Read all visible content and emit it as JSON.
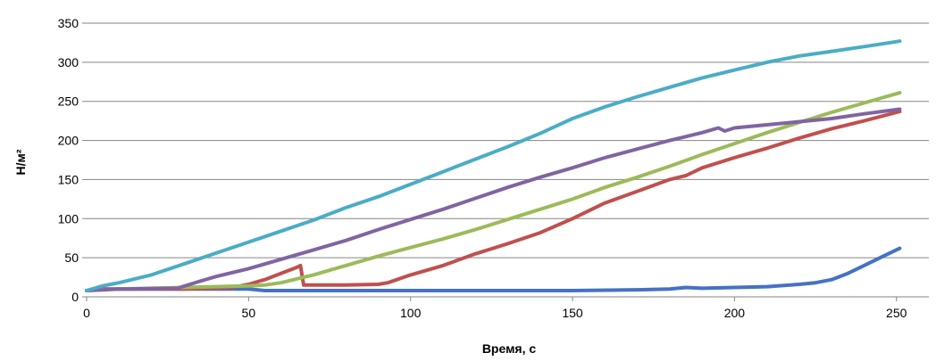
{
  "chart_data": {
    "type": "line",
    "title": "",
    "xlabel": "Время, с",
    "ylabel": "Н/м²",
    "xlim": [
      0,
      260
    ],
    "ylim": [
      0,
      350
    ],
    "xticks": [
      0,
      50,
      100,
      150,
      200,
      250
    ],
    "yticks": [
      0,
      50,
      100,
      150,
      200,
      250,
      300,
      350
    ],
    "grid": "horizontal",
    "legend": "none",
    "series": [
      {
        "color": "#4472C4",
        "points": [
          [
            0,
            8
          ],
          [
            5,
            10
          ],
          [
            50,
            10
          ],
          [
            55,
            8
          ],
          [
            100,
            8
          ],
          [
            150,
            8
          ],
          [
            170,
            9
          ],
          [
            180,
            10
          ],
          [
            185,
            12
          ],
          [
            190,
            11
          ],
          [
            200,
            12
          ],
          [
            210,
            13
          ],
          [
            220,
            16
          ],
          [
            225,
            18
          ],
          [
            230,
            22
          ],
          [
            235,
            30
          ],
          [
            240,
            40
          ],
          [
            245,
            50
          ],
          [
            251,
            62
          ]
        ]
      },
      {
        "color": "#C0504D",
        "points": [
          [
            0,
            8
          ],
          [
            5,
            10
          ],
          [
            30,
            10
          ],
          [
            45,
            12
          ],
          [
            50,
            16
          ],
          [
            55,
            22
          ],
          [
            60,
            30
          ],
          [
            65,
            38
          ],
          [
            66,
            40
          ],
          [
            67,
            15
          ],
          [
            70,
            15
          ],
          [
            80,
            15
          ],
          [
            90,
            16
          ],
          [
            93,
            18
          ],
          [
            100,
            28
          ],
          [
            110,
            40
          ],
          [
            120,
            55
          ],
          [
            130,
            68
          ],
          [
            140,
            82
          ],
          [
            150,
            100
          ],
          [
            160,
            120
          ],
          [
            170,
            135
          ],
          [
            180,
            150
          ],
          [
            185,
            155
          ],
          [
            190,
            165
          ],
          [
            200,
            178
          ],
          [
            210,
            190
          ],
          [
            220,
            203
          ],
          [
            230,
            215
          ],
          [
            240,
            225
          ],
          [
            251,
            237
          ]
        ]
      },
      {
        "color": "#9BBB59",
        "points": [
          [
            0,
            8
          ],
          [
            10,
            10
          ],
          [
            30,
            12
          ],
          [
            50,
            14
          ],
          [
            55,
            15
          ],
          [
            60,
            18
          ],
          [
            70,
            28
          ],
          [
            80,
            40
          ],
          [
            90,
            52
          ],
          [
            100,
            63
          ],
          [
            110,
            74
          ],
          [
            120,
            86
          ],
          [
            130,
            99
          ],
          [
            140,
            112
          ],
          [
            150,
            125
          ],
          [
            160,
            140
          ],
          [
            170,
            153
          ],
          [
            180,
            167
          ],
          [
            190,
            182
          ],
          [
            200,
            196
          ],
          [
            210,
            210
          ],
          [
            220,
            223
          ],
          [
            230,
            236
          ],
          [
            240,
            248
          ],
          [
            251,
            261
          ]
        ]
      },
      {
        "color": "#8064A2",
        "points": [
          [
            0,
            8
          ],
          [
            10,
            10
          ],
          [
            28,
            11
          ],
          [
            35,
            20
          ],
          [
            40,
            26
          ],
          [
            50,
            36
          ],
          [
            60,
            48
          ],
          [
            70,
            60
          ],
          [
            80,
            72
          ],
          [
            90,
            86
          ],
          [
            100,
            99
          ],
          [
            110,
            112
          ],
          [
            120,
            126
          ],
          [
            130,
            140
          ],
          [
            140,
            153
          ],
          [
            150,
            165
          ],
          [
            160,
            178
          ],
          [
            170,
            189
          ],
          [
            180,
            200
          ],
          [
            190,
            210
          ],
          [
            195,
            216
          ],
          [
            197,
            212
          ],
          [
            200,
            216
          ],
          [
            210,
            220
          ],
          [
            220,
            224
          ],
          [
            230,
            228
          ],
          [
            240,
            234
          ],
          [
            251,
            240
          ]
        ]
      },
      {
        "color": "#4BACC6",
        "points": [
          [
            0,
            8
          ],
          [
            5,
            14
          ],
          [
            10,
            18
          ],
          [
            20,
            28
          ],
          [
            30,
            42
          ],
          [
            40,
            56
          ],
          [
            50,
            70
          ],
          [
            60,
            84
          ],
          [
            70,
            98
          ],
          [
            80,
            114
          ],
          [
            90,
            128
          ],
          [
            100,
            144
          ],
          [
            110,
            160
          ],
          [
            120,
            176
          ],
          [
            130,
            192
          ],
          [
            140,
            209
          ],
          [
            150,
            228
          ],
          [
            160,
            243
          ],
          [
            170,
            256
          ],
          [
            180,
            268
          ],
          [
            190,
            280
          ],
          [
            200,
            290
          ],
          [
            210,
            300
          ],
          [
            220,
            308
          ],
          [
            230,
            314
          ],
          [
            240,
            320
          ],
          [
            251,
            327
          ]
        ]
      }
    ]
  }
}
